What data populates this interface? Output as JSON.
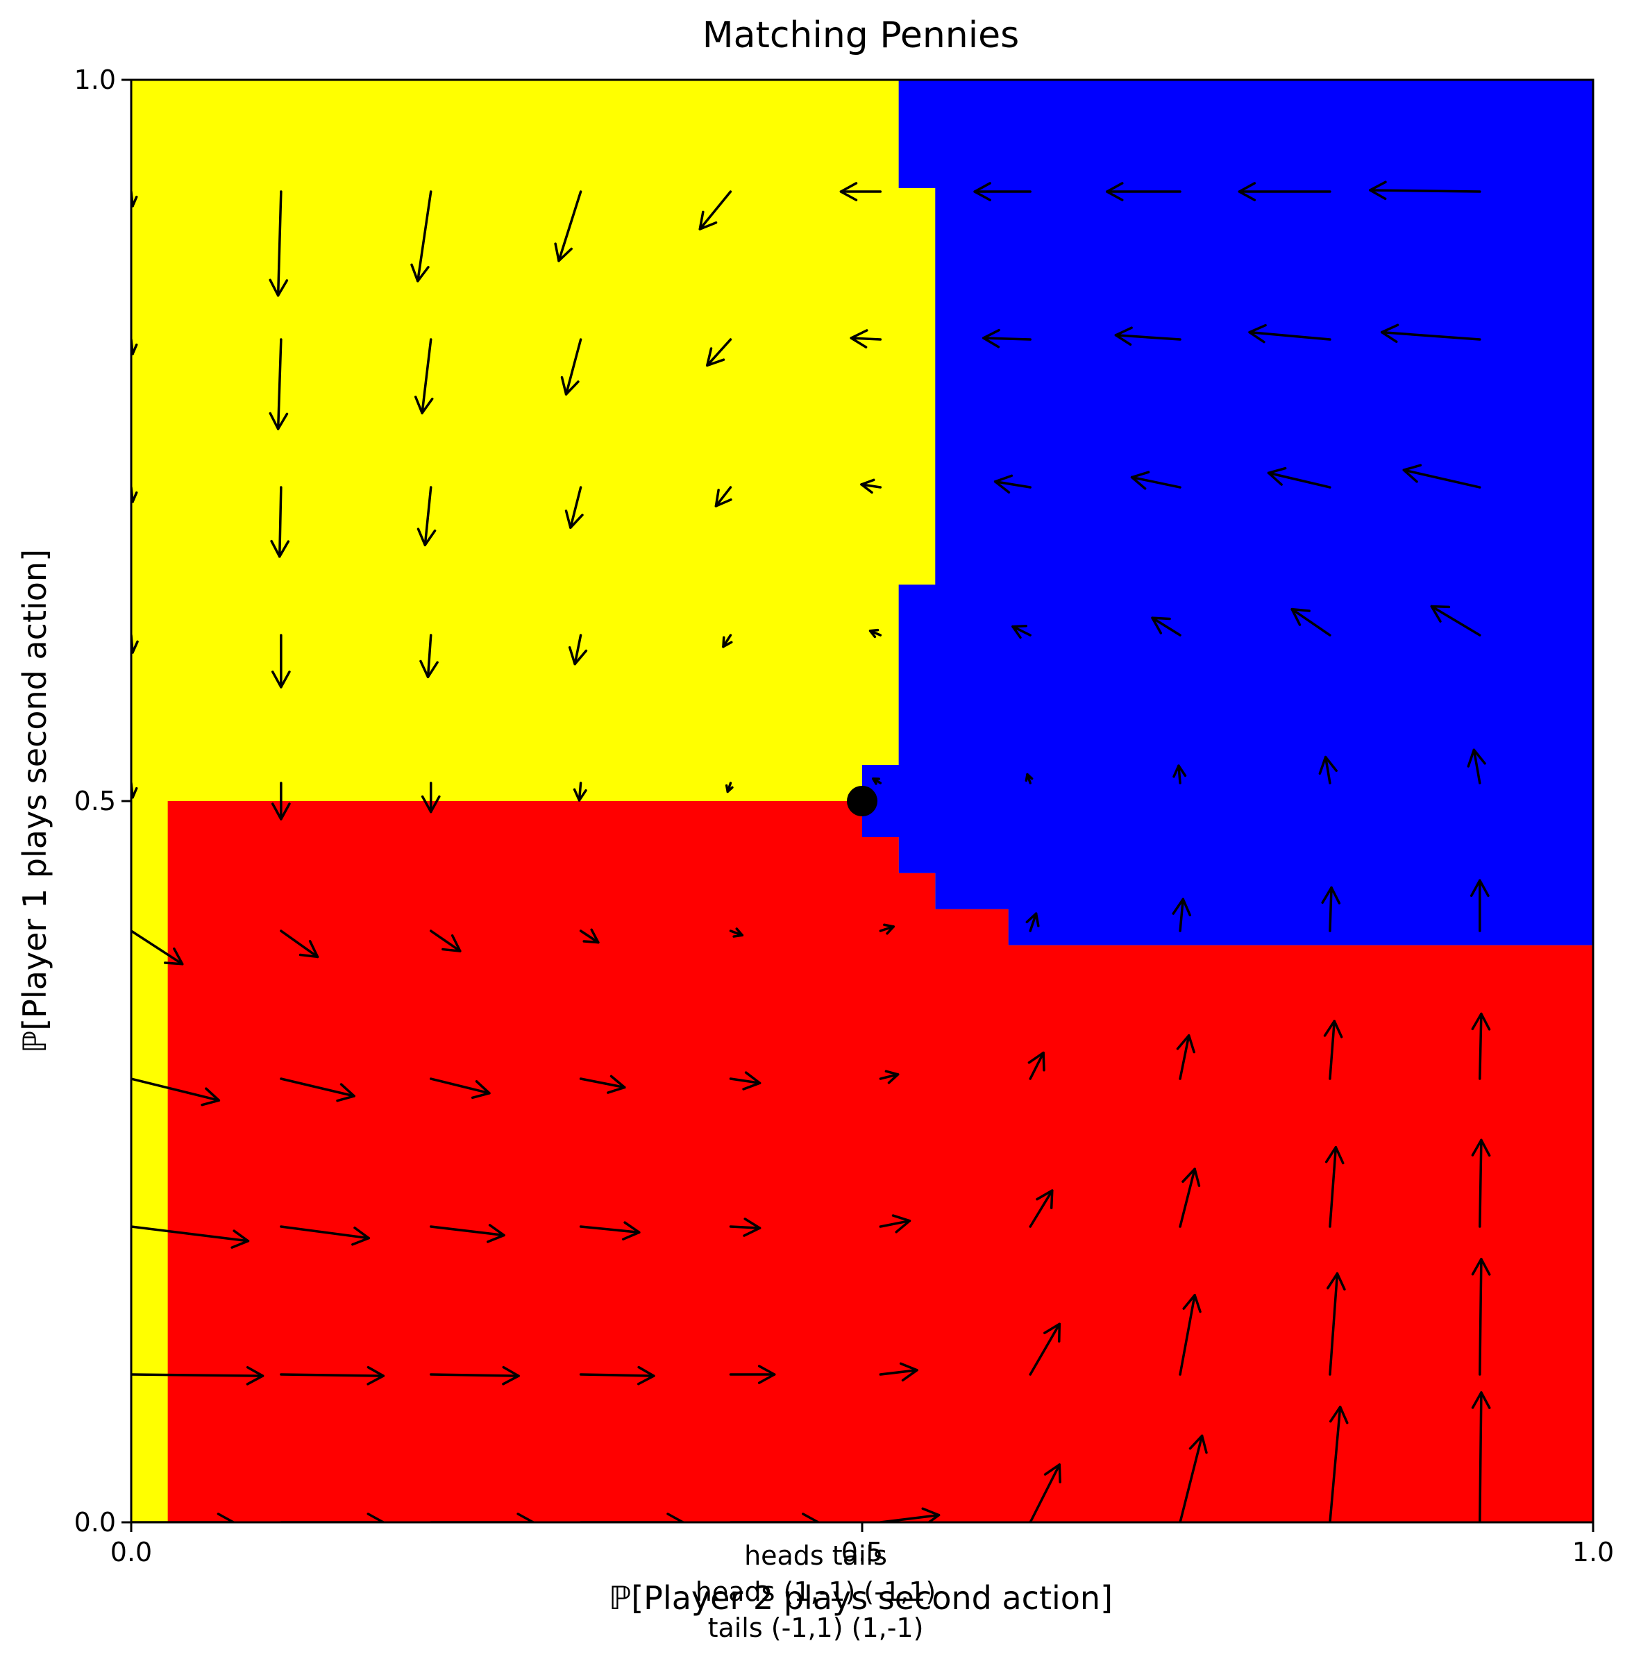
{
  "chart_data": {
    "type": "quiver",
    "title": "Matching Pennies",
    "xlabel": "ℙ[Player 2 plays second action]",
    "ylabel": "ℙ[Player 1 plays second action]",
    "xlim": [
      0.0,
      1.0
    ],
    "ylim": [
      0.0,
      1.0
    ],
    "xticks": [
      {
        "value": 0.0,
        "label": "0.0"
      },
      {
        "value": 0.5,
        "label": "0.5"
      },
      {
        "value": 1.0,
        "label": "1.0"
      }
    ],
    "yticks": [
      {
        "value": 0.0,
        "label": "0.0"
      },
      {
        "value": 0.5,
        "label": "0.5"
      },
      {
        "value": 1.0,
        "label": "1.0"
      }
    ],
    "grid": false,
    "region_colors": {
      "yellow": "#ffff00",
      "blue": "#0000ff",
      "red": "#ff0000"
    },
    "regions": [
      {
        "color": "yellow",
        "x": [
          0.0,
          1.0
        ],
        "y": [
          0.0,
          1.0
        ]
      },
      {
        "color": "blue",
        "x": [
          0.525,
          1.0
        ],
        "y": [
          0.0,
          1.0
        ],
        "note": "right of boundary"
      },
      {
        "color": "red",
        "x": [
          0.025,
          1.0
        ],
        "y": [
          0.0,
          0.5
        ]
      }
    ],
    "blue_boundary": [
      [
        0.525,
        1.0
      ],
      [
        0.525,
        0.925
      ],
      [
        0.55,
        0.925
      ],
      [
        0.55,
        0.65
      ],
      [
        0.525,
        0.65
      ],
      [
        0.525,
        0.525
      ],
      [
        0.5,
        0.525
      ],
      [
        0.5,
        0.475
      ],
      [
        0.525,
        0.475
      ],
      [
        0.525,
        0.45
      ],
      [
        0.55,
        0.45
      ],
      [
        0.55,
        0.425
      ],
      [
        0.6,
        0.425
      ],
      [
        0.6,
        0.4
      ],
      [
        1.0,
        0.4
      ],
      [
        1.0,
        1.0
      ]
    ],
    "red_boundary": [
      [
        0.025,
        0.0
      ],
      [
        0.025,
        0.5
      ],
      [
        0.5,
        0.5
      ],
      [
        0.5,
        0.475
      ],
      [
        0.525,
        0.475
      ],
      [
        0.525,
        0.45
      ],
      [
        0.55,
        0.45
      ],
      [
        0.55,
        0.425
      ],
      [
        0.6,
        0.425
      ],
      [
        0.6,
        0.4
      ],
      [
        1.0,
        0.4
      ],
      [
        1.0,
        0.0
      ]
    ],
    "equilibrium_point": {
      "x": 0.5,
      "y": 0.5
    },
    "grid_x": [
      0.0,
      0.1025,
      0.205,
      0.3075,
      0.41,
      0.5125,
      0.615,
      0.7175,
      0.82,
      0.9225
    ],
    "grid_y": [
      0.0,
      0.1025,
      0.205,
      0.3075,
      0.41,
      0.5125,
      0.615,
      0.7175,
      0.82,
      0.9225
    ],
    "quiver_scale": 1.0,
    "vectors": [
      [
        0.0,
        0.0,
        0.07,
        0.0
      ],
      [
        0.1025,
        0.0,
        0.07,
        0.0
      ],
      [
        0.205,
        0.0,
        0.07,
        0.0
      ],
      [
        0.3075,
        0.0,
        0.07,
        0.0
      ],
      [
        0.41,
        0.0,
        0.06,
        0.0
      ],
      [
        0.5125,
        0.0,
        0.04,
        0.005
      ],
      [
        0.615,
        0.0,
        0.02,
        0.04
      ],
      [
        0.7175,
        0.0,
        0.015,
        0.06
      ],
      [
        0.82,
        0.0,
        0.007,
        0.08
      ],
      [
        0.9225,
        0.0,
        0.001,
        0.09
      ],
      [
        0.0,
        0.1025,
        0.09,
        -0.001
      ],
      [
        0.1025,
        0.1025,
        0.07,
        -0.001
      ],
      [
        0.205,
        0.1025,
        0.06,
        -0.001
      ],
      [
        0.3075,
        0.1025,
        0.05,
        -0.001
      ],
      [
        0.41,
        0.1025,
        0.03,
        0.0
      ],
      [
        0.5125,
        0.1025,
        0.025,
        0.003
      ],
      [
        0.615,
        0.1025,
        0.02,
        0.035
      ],
      [
        0.7175,
        0.1025,
        0.01,
        0.055
      ],
      [
        0.82,
        0.1025,
        0.005,
        0.07
      ],
      [
        0.9225,
        0.1025,
        0.001,
        0.08
      ],
      [
        0.0,
        0.205,
        0.08,
        -0.01
      ],
      [
        0.1025,
        0.205,
        0.06,
        -0.008
      ],
      [
        0.205,
        0.205,
        0.05,
        -0.006
      ],
      [
        0.3075,
        0.205,
        0.04,
        -0.004
      ],
      [
        0.41,
        0.205,
        0.02,
        -0.001
      ],
      [
        0.5125,
        0.205,
        0.02,
        0.004
      ],
      [
        0.615,
        0.205,
        0.015,
        0.025
      ],
      [
        0.7175,
        0.205,
        0.01,
        0.04
      ],
      [
        0.82,
        0.205,
        0.004,
        0.055
      ],
      [
        0.9225,
        0.205,
        0.001,
        0.06
      ],
      [
        0.0,
        0.3075,
        0.06,
        -0.015
      ],
      [
        0.1025,
        0.3075,
        0.05,
        -0.012
      ],
      [
        0.205,
        0.3075,
        0.04,
        -0.01
      ],
      [
        0.3075,
        0.3075,
        0.03,
        -0.006
      ],
      [
        0.41,
        0.3075,
        0.02,
        -0.003
      ],
      [
        0.5125,
        0.3075,
        0.012,
        0.003
      ],
      [
        0.615,
        0.3075,
        0.009,
        0.018
      ],
      [
        0.7175,
        0.3075,
        0.006,
        0.03
      ],
      [
        0.82,
        0.3075,
        0.003,
        0.04
      ],
      [
        0.9225,
        0.3075,
        0.001,
        0.045
      ],
      [
        0.0,
        0.41,
        0.035,
        -0.023
      ],
      [
        0.1025,
        0.41,
        0.025,
        -0.018
      ],
      [
        0.205,
        0.41,
        0.02,
        -0.014
      ],
      [
        0.3075,
        0.41,
        0.012,
        -0.008
      ],
      [
        0.41,
        0.41,
        0.008,
        -0.003
      ],
      [
        0.5125,
        0.41,
        0.009,
        0.003
      ],
      [
        0.615,
        0.41,
        0.004,
        0.012
      ],
      [
        0.7175,
        0.41,
        0.002,
        0.022
      ],
      [
        0.82,
        0.41,
        0.001,
        0.03
      ],
      [
        0.9225,
        0.41,
        0.0,
        0.035
      ],
      [
        0.0,
        0.5125,
        0.001,
        -0.01
      ],
      [
        0.1025,
        0.5125,
        0.0,
        -0.025
      ],
      [
        0.205,
        0.5125,
        0.0,
        -0.02
      ],
      [
        0.3075,
        0.5125,
        -0.001,
        -0.012
      ],
      [
        0.41,
        0.5125,
        -0.002,
        -0.006
      ],
      [
        0.5125,
        0.5125,
        -0.005,
        0.003
      ],
      [
        0.615,
        0.5125,
        -0.002,
        0.006
      ],
      [
        0.7175,
        0.5125,
        -0.001,
        0.012
      ],
      [
        0.82,
        0.5125,
        -0.003,
        0.018
      ],
      [
        0.9225,
        0.5125,
        -0.004,
        0.023
      ],
      [
        0.0,
        0.615,
        0.001,
        -0.012
      ],
      [
        0.1025,
        0.615,
        0.0,
        -0.036
      ],
      [
        0.205,
        0.615,
        -0.002,
        -0.029
      ],
      [
        0.3075,
        0.615,
        -0.004,
        -0.02
      ],
      [
        0.41,
        0.615,
        -0.005,
        -0.008
      ],
      [
        0.5125,
        0.615,
        -0.007,
        0.003
      ],
      [
        0.615,
        0.615,
        -0.012,
        0.006
      ],
      [
        0.7175,
        0.615,
        -0.019,
        0.012
      ],
      [
        0.82,
        0.615,
        -0.026,
        0.018
      ],
      [
        0.9225,
        0.615,
        -0.033,
        0.02
      ],
      [
        0.0,
        0.7175,
        0.001,
        -0.01
      ],
      [
        0.1025,
        0.7175,
        -0.001,
        -0.048
      ],
      [
        0.205,
        0.7175,
        -0.004,
        -0.04
      ],
      [
        0.3075,
        0.7175,
        -0.007,
        -0.028
      ],
      [
        0.41,
        0.7175,
        -0.01,
        -0.013
      ],
      [
        0.5125,
        0.7175,
        -0.013,
        0.002
      ],
      [
        0.615,
        0.7175,
        -0.024,
        0.004
      ],
      [
        0.7175,
        0.7175,
        -0.033,
        0.007
      ],
      [
        0.82,
        0.7175,
        -0.042,
        0.01
      ],
      [
        0.9225,
        0.7175,
        -0.052,
        0.012
      ],
      [
        0.0,
        0.82,
        0.001,
        -0.01
      ],
      [
        0.1025,
        0.82,
        -0.002,
        -0.062
      ],
      [
        0.205,
        0.82,
        -0.006,
        -0.051
      ],
      [
        0.3075,
        0.82,
        -0.01,
        -0.038
      ],
      [
        0.41,
        0.82,
        -0.016,
        -0.018
      ],
      [
        0.5125,
        0.82,
        -0.02,
        0.001
      ],
      [
        0.615,
        0.82,
        -0.032,
        0.001
      ],
      [
        0.7175,
        0.82,
        -0.044,
        0.003
      ],
      [
        0.82,
        0.82,
        -0.055,
        0.005
      ],
      [
        0.9225,
        0.82,
        -0.067,
        0.005
      ],
      [
        0.0,
        0.9225,
        0.001,
        -0.01
      ],
      [
        0.1025,
        0.9225,
        -0.002,
        -0.072
      ],
      [
        0.205,
        0.9225,
        -0.009,
        -0.062
      ],
      [
        0.3075,
        0.9225,
        -0.015,
        -0.048
      ],
      [
        0.41,
        0.9225,
        -0.021,
        -0.026
      ],
      [
        0.5125,
        0.9225,
        -0.027,
        0.0
      ],
      [
        0.615,
        0.9225,
        -0.038,
        0.0
      ],
      [
        0.7175,
        0.9225,
        -0.05,
        0.0
      ],
      [
        0.82,
        0.9225,
        -0.062,
        0.0
      ],
      [
        0.9225,
        0.9225,
        -0.075,
        0.001
      ]
    ],
    "payoff_table": {
      "header": [
        "",
        "heads",
        "tails"
      ],
      "rows": [
        [
          "heads",
          "(1,-1)",
          "(-1,1)"
        ],
        [
          "tails",
          "(-1,1)",
          "(1,-1)"
        ]
      ]
    }
  }
}
